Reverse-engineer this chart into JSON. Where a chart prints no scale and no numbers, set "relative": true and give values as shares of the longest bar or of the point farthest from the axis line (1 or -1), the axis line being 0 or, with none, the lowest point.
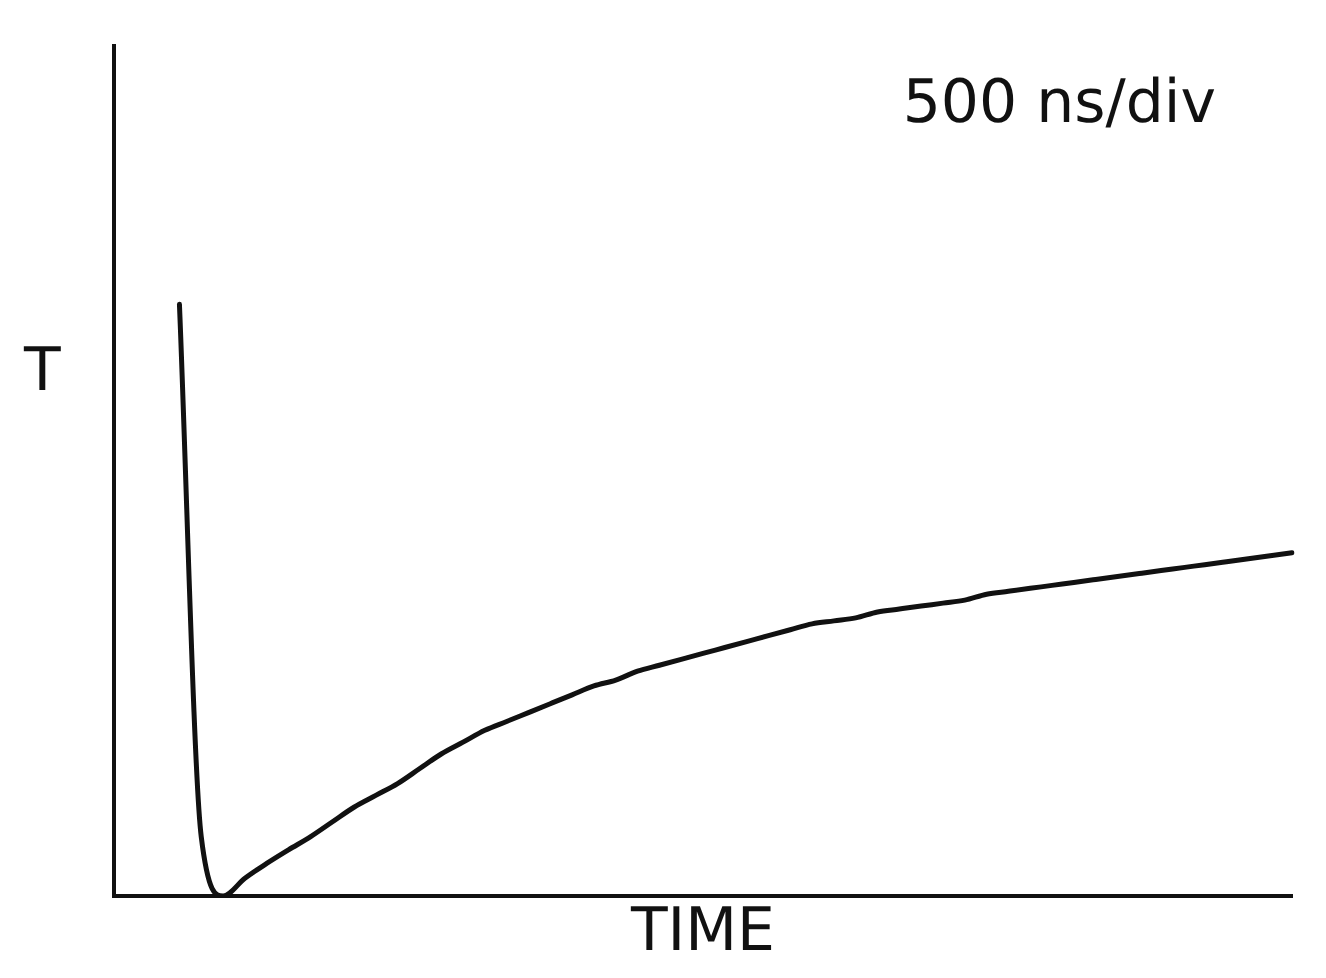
{
  "chart_data": {
    "type": "line",
    "relative": true,
    "xlabel": "TIME",
    "ylabel": "T",
    "annotations": [
      "500 ns/div"
    ],
    "color": "#111111",
    "marker": "none",
    "grid": false,
    "legend": false,
    "tick_labels": false,
    "categories": [
      null,
      null,
      null,
      null,
      null,
      null,
      null,
      null,
      null,
      null,
      null,
      null,
      null,
      null,
      null,
      null,
      null,
      null,
      null,
      null,
      null,
      null,
      null,
      null,
      null,
      null,
      null,
      null,
      null,
      null,
      null,
      null,
      null,
      null,
      null,
      null,
      null,
      null,
      null,
      null,
      null,
      null,
      null,
      null,
      null,
      null,
      null,
      null,
      null,
      null,
      null,
      null,
      null,
      null,
      null
    ],
    "values": [
      null,
      null,
      null,
      1,
      0.1,
      0,
      0.03,
      0.055,
      0.078,
      0.1,
      0.125,
      0.15,
      0.17,
      0.19,
      0.215,
      0.24,
      0.26,
      0.28,
      0.295,
      0.31,
      0.325,
      0.34,
      0.355,
      0.365,
      0.38,
      0.39,
      0.4,
      0.41,
      0.42,
      0.43,
      0.44,
      0.45,
      0.46,
      0.465,
      0.47,
      0.48,
      0.485,
      0.49,
      0.495,
      0.5,
      0.51,
      0.515,
      0.52,
      0.525,
      0.53,
      0.535,
      0.54,
      0.545,
      0.55,
      0.555,
      0.56,
      0.565,
      0.57,
      0.575,
      0.58
    ]
  }
}
